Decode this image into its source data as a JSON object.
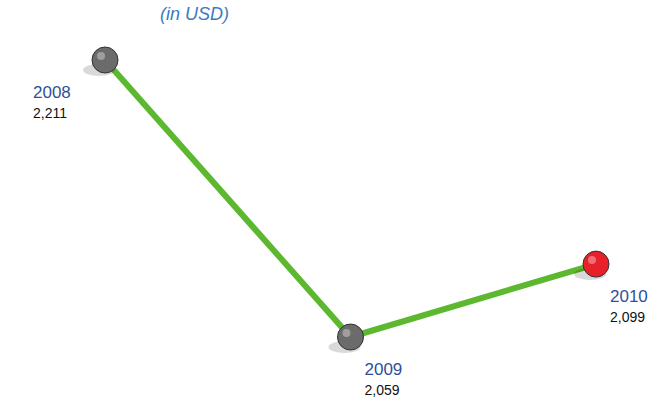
{
  "chart_data": {
    "type": "line",
    "subtitle": "(in USD)",
    "categories": [
      "2008",
      "2009",
      "2010"
    ],
    "values": [
      2211,
      2059,
      2099
    ],
    "value_labels": [
      "2,211",
      "2,059",
      "2,099"
    ],
    "color": "#5cb82e",
    "colors": [
      "#6b6b6b",
      "#6b6b6b",
      "#e8202a"
    ],
    "marker": "circle",
    "data_labels": true,
    "tick_labels": false
  }
}
